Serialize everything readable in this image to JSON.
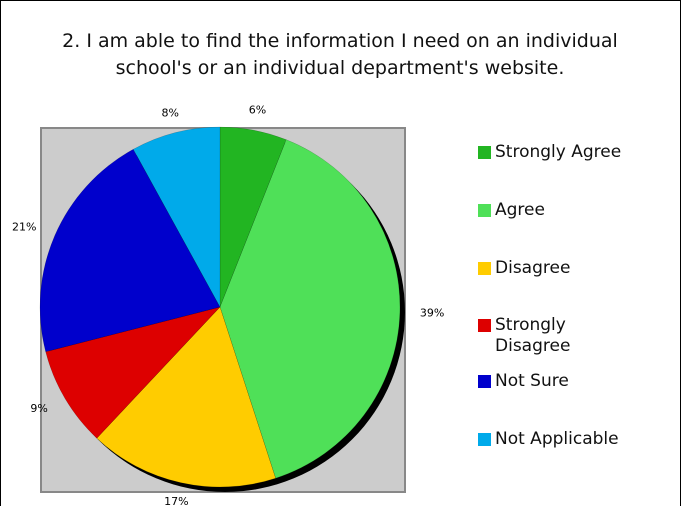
{
  "chart_data": {
    "type": "pie",
    "title": "2.  I am able to find the information I need on an individual school's or an individual department's website.",
    "categories": [
      "Strongly Agree",
      "Agree",
      "Disagree",
      "Strongly Disagree",
      "Not Sure",
      "Not Applicable"
    ],
    "values": [
      6,
      39,
      17,
      9,
      21,
      8
    ],
    "value_labels": [
      "6%",
      "39%",
      "17%",
      "9%",
      "21%",
      "8%"
    ],
    "colors": [
      "#22b522",
      "#4fe058",
      "#ffcc00",
      "#dd0000",
      "#0000cc",
      "#00aaea"
    ],
    "legend": "right"
  }
}
